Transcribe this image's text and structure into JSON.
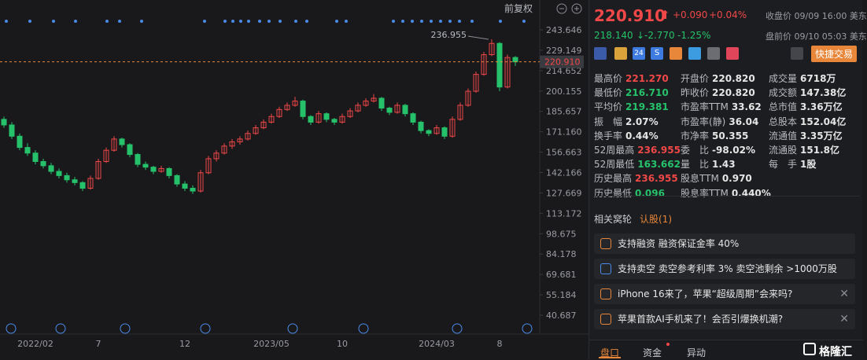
{
  "toolbar": {
    "adjust": "前复权"
  },
  "chart_data": {
    "type": "candlestick",
    "up_color": "#f04848",
    "down_color": "#26c26b",
    "ylim": [
      27.27,
      264.89
    ],
    "yticks": [
      243.646,
      229.149,
      214.652,
      200.155,
      185.657,
      {
        "value": 171.16,
        "label": "171.160"
      },
      156.663,
      142.166,
      127.669,
      113.172,
      98.675,
      84.178,
      69.681,
      55.184,
      40.687
    ],
    "last_price": {
      "value": 220.91,
      "label": "220.910"
    },
    "dates": [
      null,
      null,
      null,
      null,
      "2022/02",
      null,
      null,
      null,
      null,
      null,
      null,
      null,
      "7",
      null,
      null,
      null,
      null,
      null,
      null,
      null,
      null,
      null,
      null,
      "12",
      null,
      null,
      null,
      null,
      null,
      null,
      null,
      null,
      null,
      null,
      "2023/05",
      null,
      null,
      null,
      null,
      null,
      null,
      null,
      null,
      "10",
      null,
      null,
      null,
      null,
      null,
      null,
      null,
      null,
      null,
      null,
      null,
      "2024/03",
      null,
      null,
      null,
      null,
      null,
      null,
      null,
      "8",
      null,
      null
    ],
    "candles": [
      [
        180,
        182,
        174,
        176
      ],
      [
        176,
        178,
        166,
        168
      ],
      [
        168,
        170,
        158,
        160
      ],
      [
        160,
        163,
        154,
        156
      ],
      [
        156,
        158,
        148,
        150
      ],
      [
        150,
        152,
        145,
        147
      ],
      [
        147,
        149,
        141,
        143
      ],
      [
        143,
        145,
        138,
        140
      ],
      [
        140,
        142,
        135,
        137
      ],
      [
        137,
        139,
        133,
        135
      ],
      [
        135,
        136,
        129,
        131
      ],
      [
        131,
        140,
        130,
        138
      ],
      [
        138,
        152,
        137,
        150
      ],
      [
        150,
        160,
        149,
        158
      ],
      [
        158,
        168,
        157,
        166
      ],
      [
        166,
        167,
        160,
        162
      ],
      [
        162,
        163,
        153,
        155
      ],
      [
        155,
        156,
        146,
        148
      ],
      [
        148,
        150,
        144,
        146
      ],
      [
        146,
        147,
        141,
        143
      ],
      [
        143,
        147,
        142,
        145
      ],
      [
        145,
        146,
        138,
        140
      ],
      [
        140,
        141,
        132,
        134
      ],
      [
        134,
        136,
        129,
        131
      ],
      [
        131,
        133,
        127,
        129
      ],
      [
        129,
        144,
        128,
        142
      ],
      [
        142,
        154,
        141,
        152
      ],
      [
        152,
        158,
        150,
        156
      ],
      [
        156,
        163,
        155,
        161
      ],
      [
        161,
        166,
        159,
        164
      ],
      [
        164,
        168,
        162,
        166
      ],
      [
        166,
        172,
        165,
        170
      ],
      [
        170,
        176,
        169,
        174
      ],
      [
        174,
        180,
        173,
        178
      ],
      [
        178,
        184,
        177,
        182
      ],
      [
        182,
        189,
        181,
        187
      ],
      [
        187,
        192,
        186,
        190
      ],
      [
        190,
        196,
        189,
        193
      ],
      [
        193,
        194,
        180,
        182
      ],
      [
        182,
        183,
        176,
        178
      ],
      [
        178,
        186,
        177,
        184
      ],
      [
        184,
        185,
        178,
        180
      ],
      [
        180,
        181,
        176,
        178
      ],
      [
        178,
        184,
        177,
        182
      ],
      [
        182,
        188,
        181,
        186
      ],
      [
        186,
        192,
        185,
        190
      ],
      [
        190,
        195,
        189,
        193
      ],
      [
        193,
        198,
        192,
        195
      ],
      [
        195,
        196,
        186,
        188
      ],
      [
        188,
        189,
        183,
        185
      ],
      [
        185,
        192,
        184,
        190
      ],
      [
        190,
        191,
        182,
        184
      ],
      [
        184,
        185,
        176,
        178
      ],
      [
        178,
        179,
        170,
        172
      ],
      [
        172,
        173,
        168,
        170
      ],
      [
        170,
        176,
        169,
        174
      ],
      [
        174,
        175,
        166,
        168
      ],
      [
        168,
        182,
        167,
        180
      ],
      [
        180,
        192,
        179,
        190
      ],
      [
        190,
        202,
        189,
        200
      ],
      [
        200,
        214,
        199,
        212
      ],
      [
        212,
        228,
        211,
        226
      ],
      [
        226,
        236.955,
        225,
        234
      ],
      [
        234,
        235,
        200,
        203
      ],
      [
        203,
        226,
        202,
        224
      ],
      [
        224,
        225,
        218,
        220.91
      ]
    ],
    "high_index": 62
  },
  "quote": {
    "price": "220.910",
    "change": "+0.090",
    "change_pct": "+0.04%",
    "close_note": "收盘价 09/09 16:00 美东",
    "pre_price": "218.140",
    "pre_arrow": "↓",
    "pre_change": "-2.770",
    "pre_change_pct": "-1.25%",
    "pre_note": "盘前价 09/10 05:03 美东",
    "icon_labels": [
      "24",
      "S"
    ],
    "trade": "快捷交易"
  },
  "stats": [
    [
      {
        "label": "最高价",
        "value": "221.270",
        "tone": "up"
      },
      {
        "label": "开盘价",
        "value": "220.820"
      },
      {
        "label": "成交量",
        "value": "6718万"
      }
    ],
    [
      {
        "label": "最低价",
        "value": "216.710",
        "tone": "down"
      },
      {
        "label": "昨收价",
        "value": "220.820"
      },
      {
        "label": "成交额",
        "value": "147.38亿"
      }
    ],
    [
      {
        "label": "平均价",
        "value": "219.381",
        "tone": "down"
      },
      {
        "label": "市盈率TTM",
        "value": "33.62"
      },
      {
        "label": "总市值",
        "value": "3.36万亿"
      }
    ],
    [
      {
        "label": "振　幅",
        "value": "2.07%"
      },
      {
        "label": "市盈率(静)",
        "value": "36.04"
      },
      {
        "label": "总股本",
        "value": "152.04亿"
      }
    ],
    [
      {
        "label": "换手率",
        "value": "0.44%"
      },
      {
        "label": "市净率",
        "value": "50.355"
      },
      {
        "label": "流通值",
        "value": "3.35万亿"
      }
    ],
    [
      {
        "label": "52周最高",
        "value": "236.955",
        "tone": "up"
      },
      {
        "label": "委　比",
        "value": "-98.02%"
      },
      {
        "label": "流通股",
        "value": "151.8亿"
      }
    ],
    [
      {
        "label": "52周最低",
        "value": "163.662",
        "tone": "down"
      },
      {
        "label": "量　比",
        "value": "1.43"
      },
      {
        "label": "每　手",
        "value": "1股"
      }
    ],
    [
      {
        "label": "历史最高",
        "value": "236.955",
        "tone": "up"
      },
      {
        "label": "股息TTM",
        "value": "0.970"
      }
    ],
    [
      {
        "label": "历史最低",
        "value": "0.096",
        "tone": "down"
      },
      {
        "label": "股息率TTM",
        "value": "0.440%"
      }
    ]
  ],
  "tabs": [
    "相关窝轮",
    "认股(1)"
  ],
  "cards": [
    "支持融资 融资保证金率 40%",
    "支持卖空 卖空参考利率 3% 卖空池剩余 >1000万股",
    "iPhone 16来了，苹果“超级周期”会来吗?",
    "苹果首款AI手机来了！会否引爆换机潮?"
  ],
  "bottom_tabs": [
    "盘口",
    "资金",
    "异动"
  ],
  "brand": "格隆汇"
}
